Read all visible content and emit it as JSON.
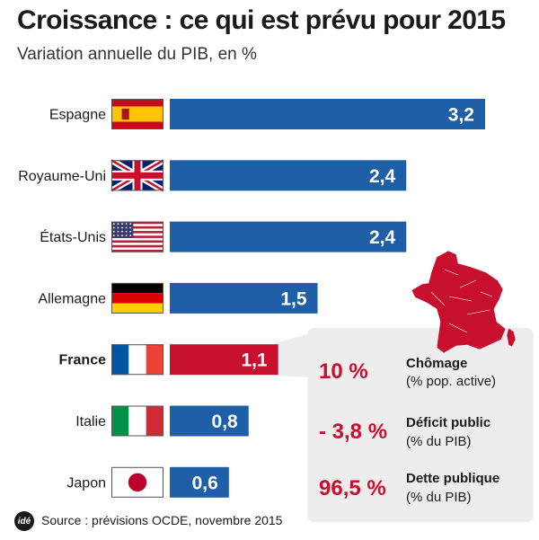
{
  "header": {
    "title": "Croissance : ce qui est prévu pour 2015",
    "subtitle": "Variation annuelle du PIB, en %"
  },
  "chart_data": {
    "type": "bar",
    "orientation": "horizontal",
    "title": "Croissance : ce qui est prévu pour 2015",
    "subtitle": "Variation annuelle du PIB, en %",
    "categories": [
      "Espagne",
      "Royaume-Uni",
      "États-Unis",
      "Allemagne",
      "France",
      "Italie",
      "Japon"
    ],
    "values": [
      3.2,
      2.4,
      2.4,
      1.5,
      1.1,
      0.8,
      0.6
    ],
    "value_labels": [
      "3,2",
      "2,4",
      "2,4",
      "1,5",
      "1,1",
      "0,8",
      "0,6"
    ],
    "flags": [
      "spain-flag-icon",
      "uk-flag-icon",
      "usa-flag-icon",
      "germany-flag-icon",
      "france-flag-icon",
      "italy-flag-icon",
      "japan-flag-icon"
    ],
    "highlight": "France",
    "xlim": [
      0,
      3.2
    ],
    "grid": false,
    "legend": "none"
  },
  "colors": {
    "bar": "#1f5fa8",
    "highlight_bar": "#c8102e",
    "panel": "#ededed",
    "accent": "#c8102e"
  },
  "france_panel": {
    "map_icon": "france-map-icon",
    "indicators": [
      {
        "value": "10 %",
        "label": "Chômage",
        "sub": " (% pop. active)"
      },
      {
        "value": "- 3,8 %",
        "label": "Déficit public",
        "sub": "(% du PIB)"
      },
      {
        "value": "96,5 %",
        "label": "Dette publique",
        "sub": "(% du PIB)"
      }
    ]
  },
  "footer": {
    "logo": "idé",
    "source": "Source : prévisions OCDE, novembre 2015"
  }
}
